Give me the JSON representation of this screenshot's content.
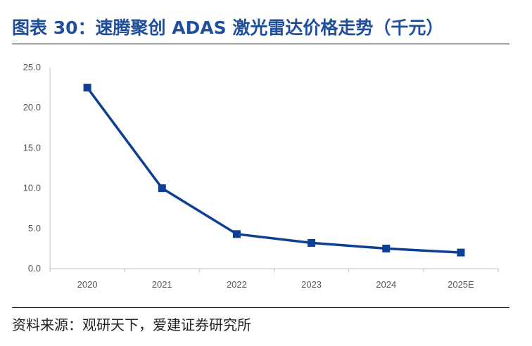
{
  "header": {
    "title": "图表 30：速腾聚创 ADAS 激光雷达价格走势（千元）"
  },
  "footer": {
    "source": "资料来源：观研天下，爱建证券研究所"
  },
  "chart_data": {
    "type": "line",
    "title": "图表 30：速腾聚创 ADAS 激光雷达价格走势（千元）",
    "categories": [
      "2020",
      "2021",
      "2022",
      "2023",
      "2024",
      "2025E"
    ],
    "series": [
      {
        "values": [
          22.5,
          10.0,
          4.3,
          3.2,
          2.5,
          2.0
        ],
        "color": "#0d3f94"
      }
    ],
    "y_ticks": [
      "0.0",
      "5.0",
      "10.0",
      "15.0",
      "20.0",
      "25.0"
    ],
    "ylim": [
      0,
      25
    ],
    "grid": false,
    "legend": "none",
    "xlabel": "",
    "ylabel": ""
  }
}
